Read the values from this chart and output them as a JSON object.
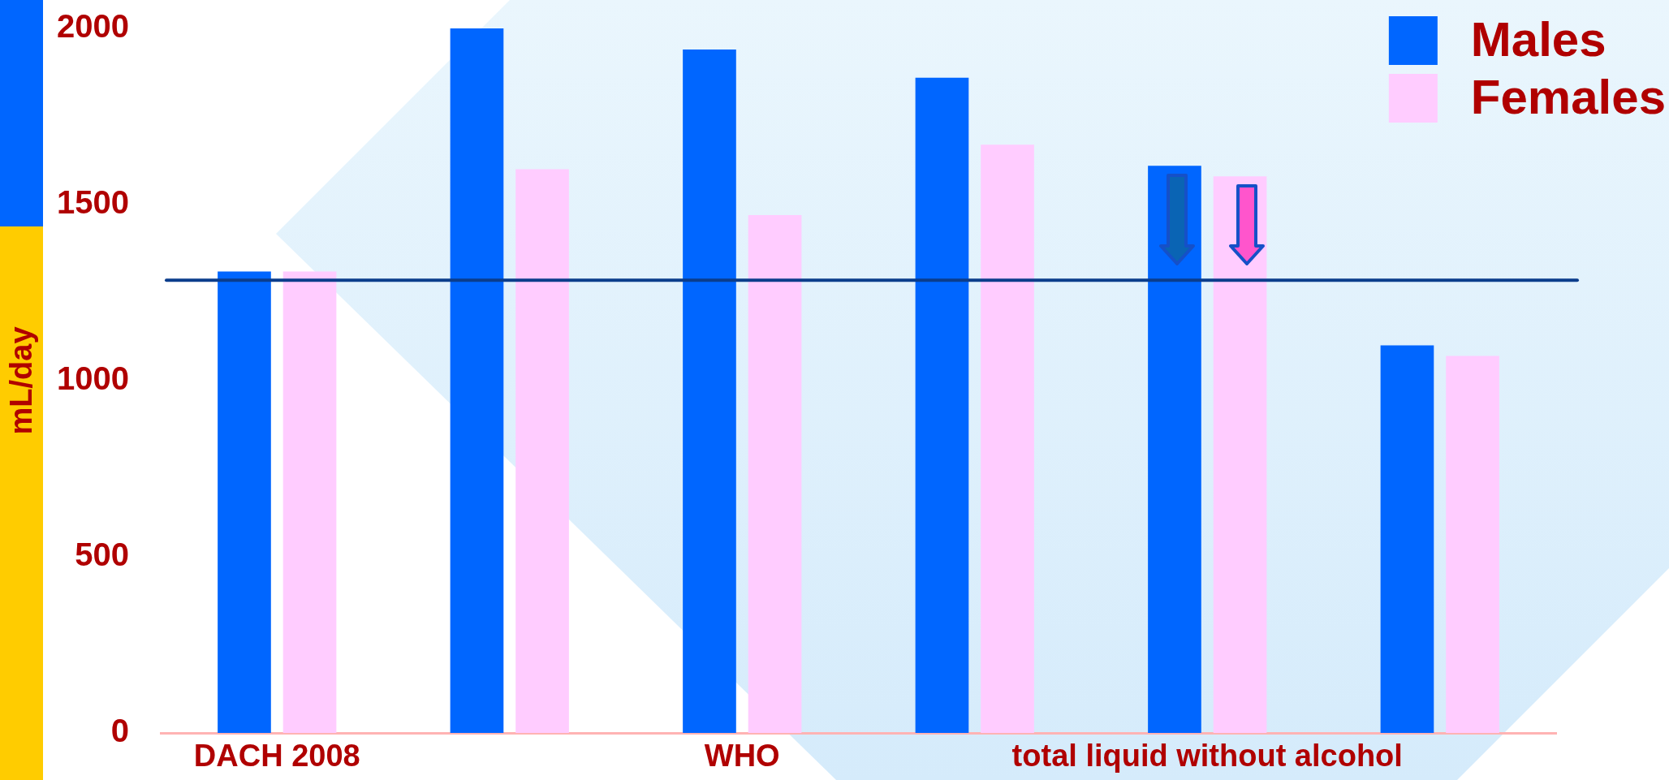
{
  "chart_data": {
    "type": "bar",
    "categories": [
      "DACH 2008",
      null,
      "WHO",
      null,
      "total liquid without alcohol",
      null
    ],
    "series": [
      {
        "name": "Males",
        "color": "#0066ff",
        "values": [
          1310,
          2000,
          1940,
          1860,
          1610,
          1100
        ]
      },
      {
        "name": "Females",
        "color": "#ffccff",
        "values": [
          1310,
          1600,
          1470,
          1670,
          1580,
          1070
        ]
      }
    ],
    "ylabel": "mL/day",
    "ylim": [
      0,
      2000
    ],
    "yticks": [
      0,
      500,
      1000,
      1500,
      2000
    ],
    "ref_lines": [
      {
        "axis": "y",
        "value": 1285,
        "color": "#0b3d8c"
      }
    ],
    "legend": "top right",
    "grid": false
  }
}
